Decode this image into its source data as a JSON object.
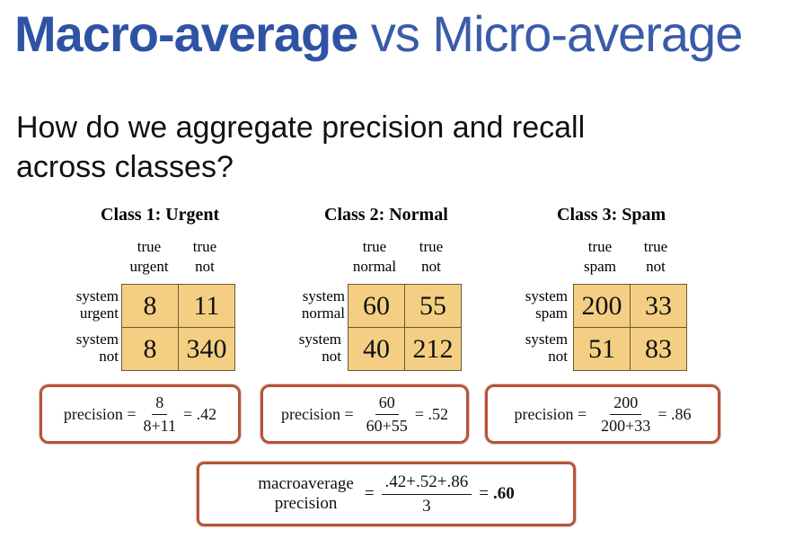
{
  "slide": {
    "title_bold": "Macro-average",
    "title_rest": " vs Micro-average",
    "question_line1": "How do we aggregate precision and recall",
    "question_line2": "across classes?"
  },
  "classes": [
    {
      "title": "Class 1: Urgent",
      "col1": [
        "true",
        "urgent"
      ],
      "col2": [
        "true",
        "not"
      ],
      "row1": [
        "system",
        "urgent"
      ],
      "row2": [
        "system",
        "not"
      ],
      "cells": [
        "8",
        "11",
        "8",
        "340"
      ],
      "precision": {
        "label": "precision =",
        "num": "8",
        "den": "8+11",
        "result": "= .42"
      }
    },
    {
      "title": "Class 2: Normal",
      "col1": [
        "true",
        "normal"
      ],
      "col2": [
        "true",
        "not"
      ],
      "row1": [
        "system",
        "normal"
      ],
      "row2": [
        "system",
        "not"
      ],
      "cells": [
        "60",
        "55",
        "40",
        "212"
      ],
      "precision": {
        "label": "precision =",
        "num": "60",
        "den": "60+55",
        "result": "= .52"
      }
    },
    {
      "title": "Class 3: Spam",
      "col1": [
        "true",
        "spam"
      ],
      "col2": [
        "true",
        "not"
      ],
      "row1": [
        "system",
        "spam"
      ],
      "row2": [
        "system",
        "not"
      ],
      "cells": [
        "200",
        "33",
        "51",
        "83"
      ],
      "precision": {
        "label": "precision =",
        "num": "200",
        "den": "200+33",
        "result": "= .86"
      }
    }
  ],
  "macro": {
    "label_line1": "macroaverage",
    "label_line2": "precision",
    "eq": "=",
    "num": ".42+.52+.86",
    "den": "3",
    "eq2": "=",
    "result": ".60"
  }
}
